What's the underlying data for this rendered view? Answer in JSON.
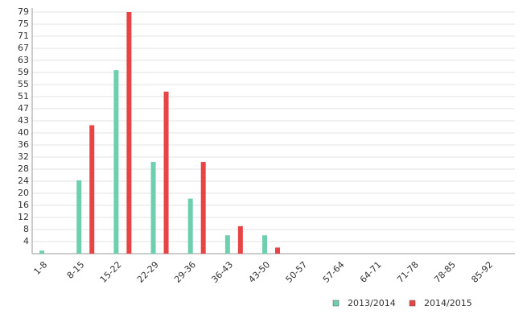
{
  "chart_data": {
    "type": "bar",
    "categories": [
      "1-8",
      "8-15",
      "15-22",
      "22-29",
      "29-36",
      "36-43",
      "43-50",
      "50-57",
      "57-64",
      "64-71",
      "71-78",
      "78-85",
      "85-92"
    ],
    "series": [
      {
        "name": "2013/2014",
        "color": "#6ccfad",
        "values": [
          1,
          24,
          60,
          30,
          18,
          6,
          6,
          0,
          0,
          0,
          0,
          0,
          0
        ]
      },
      {
        "name": "2014/2015",
        "color": "#e84445",
        "values": [
          0,
          42,
          79,
          53,
          30,
          9,
          2,
          0,
          0,
          0,
          0,
          0,
          0
        ]
      }
    ],
    "ylim": [
      0,
      79
    ],
    "yticks": [
      {
        "value": 3.95,
        "label": "4"
      },
      {
        "value": 7.9,
        "label": "8"
      },
      {
        "value": 11.85,
        "label": "12"
      },
      {
        "value": 15.8,
        "label": "16"
      },
      {
        "value": 19.75,
        "label": "20"
      },
      {
        "value": 23.7,
        "label": "24"
      },
      {
        "value": 27.65,
        "label": "28"
      },
      {
        "value": 31.6,
        "label": "32"
      },
      {
        "value": 35.55,
        "label": "36"
      },
      {
        "value": 39.5,
        "label": "40"
      },
      {
        "value": 43.45,
        "label": "43"
      },
      {
        "value": 47.4,
        "label": "47"
      },
      {
        "value": 51.35,
        "label": "51"
      },
      {
        "value": 55.3,
        "label": "55"
      },
      {
        "value": 59.25,
        "label": "59"
      },
      {
        "value": 63.2,
        "label": "63"
      },
      {
        "value": 67.15,
        "label": "67"
      },
      {
        "value": 71.1,
        "label": "71"
      },
      {
        "value": 75.05,
        "label": "75"
      },
      79
    ],
    "grid": true
  }
}
